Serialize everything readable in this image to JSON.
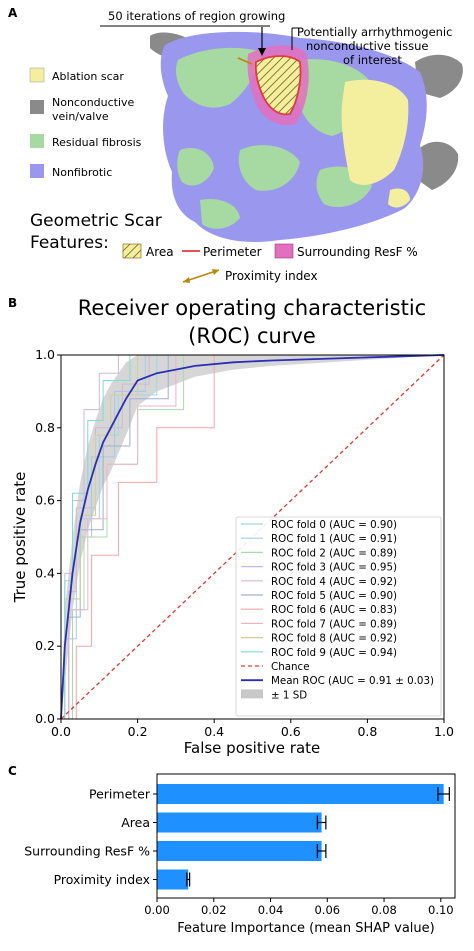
{
  "panel_a": {
    "letter": "A",
    "callout_region": "50 iterations of region growing",
    "callout_tissue": [
      "Potentially arrhythmogenic",
      "nonconductive tissue",
      "of interest"
    ],
    "legend": [
      {
        "label": "Ablation scar",
        "color": "#f3ef9e"
      },
      {
        "label": "Nonconductive",
        "label2": "vein/valve",
        "color": "#8a8a8a"
      },
      {
        "label": "Residual fibrosis",
        "color": "#a7d9a2"
      },
      {
        "label": "Nonfibrotic",
        "color": "#9a97ef"
      }
    ],
    "features_title": [
      "Geometric Scar",
      "Features:"
    ],
    "features": {
      "area": "Area",
      "perimeter": "Perimeter",
      "surrounding": "Surrounding ResF %",
      "proximity": "Proximity index"
    },
    "colors": {
      "perimeter": "#e03a3a",
      "surrounding": "#e36fc0",
      "proximity": "#b8860b"
    }
  },
  "panel_b": {
    "letter": "B",
    "title": [
      "Receiver operating characteristic",
      "(ROC) curve"
    ],
    "xlabel": "False positive rate",
    "ylabel": "True positive rate",
    "xticks": [
      "0.0",
      "0.2",
      "0.4",
      "0.6",
      "0.8",
      "1.0"
    ],
    "yticks": [
      "0.0",
      "0.2",
      "0.4",
      "0.6",
      "0.8",
      "1.0"
    ],
    "legend_folds": [
      "ROC fold 0 (AUC = 0.90)",
      "ROC fold 1 (AUC = 0.91)",
      "ROC fold 2 (AUC = 0.89)",
      "ROC fold 3 (AUC = 0.95)",
      "ROC fold 4 (AUC = 0.92)",
      "ROC fold 5 (AUC = 0.90)",
      "ROC fold 6 (AUC = 0.83)",
      "ROC fold 7 (AUC = 0.89)",
      "ROC fold 8 (AUC = 0.92)",
      "ROC fold 9 (AUC = 0.94)"
    ],
    "legend_chance": "Chance",
    "legend_mean": "Mean ROC (AUC = 0.91 ± 0.03)",
    "legend_sd": "± 1 SD",
    "fold_colors": [
      "#9fd8df",
      "#a6c8e8",
      "#a9dba9",
      "#c8b8e0",
      "#d2b8cf",
      "#9fb0cf",
      "#f2a6a6",
      "#e9b6c9",
      "#cfcf9a",
      "#7fdcd0"
    ],
    "chance_color": "#e03a2a",
    "mean_color": "#2b2fb5",
    "sd_color": "#c8c8c8"
  },
  "chart_data": [
    {
      "type": "line",
      "title": "Receiver operating characteristic (ROC) curve",
      "xlabel": "False positive rate",
      "ylabel": "True positive rate",
      "xlim": [
        0,
        1
      ],
      "ylim": [
        0,
        1
      ],
      "series": [
        {
          "name": "Mean ROC (AUC = 0.91 ± 0.03)",
          "x": [
            0.0,
            0.01,
            0.02,
            0.03,
            0.05,
            0.07,
            0.09,
            0.11,
            0.13,
            0.15,
            0.17,
            0.2,
            0.25,
            0.3,
            0.35,
            0.45,
            0.55,
            0.7,
            0.85,
            1.0
          ],
          "y": [
            0.0,
            0.2,
            0.3,
            0.4,
            0.54,
            0.63,
            0.7,
            0.76,
            0.8,
            0.84,
            0.88,
            0.93,
            0.95,
            0.96,
            0.97,
            0.98,
            0.985,
            0.99,
            0.995,
            1.0
          ]
        },
        {
          "name": "Chance",
          "x": [
            0,
            1
          ],
          "y": [
            0,
            1
          ]
        }
      ],
      "sd_band": {
        "x": [
          0.0,
          0.01,
          0.02,
          0.03,
          0.05,
          0.07,
          0.09,
          0.11,
          0.13,
          0.15,
          0.17,
          0.2,
          0.25,
          0.3,
          0.35,
          0.45,
          0.55,
          0.7,
          0.85,
          1.0
        ],
        "upper": [
          0.0,
          0.3,
          0.4,
          0.5,
          0.65,
          0.75,
          0.82,
          0.88,
          0.92,
          0.95,
          0.98,
          1.0,
          1.0,
          1.0,
          1.0,
          1.0,
          1.0,
          1.0,
          1.0,
          1.0
        ],
        "lower": [
          0.0,
          0.1,
          0.2,
          0.3,
          0.43,
          0.52,
          0.58,
          0.64,
          0.68,
          0.73,
          0.78,
          0.86,
          0.9,
          0.92,
          0.94,
          0.96,
          0.97,
          0.98,
          0.99,
          1.0
        ]
      },
      "folds": [
        {
          "x": [
            0,
            0.02,
            0.02,
            0.05,
            0.05,
            0.1,
            0.1,
            0.15,
            0.15,
            0.25,
            0.25,
            1
          ],
          "y": [
            0,
            0,
            0.33,
            0.33,
            0.55,
            0.55,
            0.78,
            0.78,
            0.89,
            0.89,
            1,
            1
          ]
        },
        {
          "x": [
            0,
            0.01,
            0.01,
            0.04,
            0.04,
            0.08,
            0.08,
            0.14,
            0.14,
            0.22,
            0.22,
            1
          ],
          "y": [
            0,
            0,
            0.22,
            0.22,
            0.5,
            0.5,
            0.72,
            0.72,
            0.9,
            0.9,
            1,
            1
          ]
        },
        {
          "x": [
            0,
            0.03,
            0.03,
            0.06,
            0.06,
            0.12,
            0.12,
            0.2,
            0.2,
            0.32,
            0.32,
            1
          ],
          "y": [
            0,
            0,
            0.3,
            0.3,
            0.5,
            0.5,
            0.7,
            0.7,
            0.85,
            0.85,
            1,
            1
          ]
        },
        {
          "x": [
            0,
            0.01,
            0.01,
            0.03,
            0.03,
            0.06,
            0.06,
            0.1,
            0.1,
            0.15,
            0.15,
            1
          ],
          "y": [
            0,
            0,
            0.4,
            0.4,
            0.6,
            0.6,
            0.85,
            0.85,
            0.95,
            0.95,
            1,
            1
          ]
        },
        {
          "x": [
            0,
            0.02,
            0.02,
            0.04,
            0.04,
            0.09,
            0.09,
            0.16,
            0.16,
            0.23,
            0.23,
            1
          ],
          "y": [
            0,
            0,
            0.35,
            0.35,
            0.58,
            0.58,
            0.8,
            0.8,
            0.92,
            0.92,
            1,
            1
          ]
        },
        {
          "x": [
            0,
            0.02,
            0.02,
            0.05,
            0.05,
            0.11,
            0.11,
            0.18,
            0.18,
            0.28,
            0.28,
            1
          ],
          "y": [
            0,
            0,
            0.28,
            0.28,
            0.52,
            0.52,
            0.75,
            0.75,
            0.88,
            0.88,
            1,
            1
          ]
        },
        {
          "x": [
            0,
            0.04,
            0.04,
            0.08,
            0.08,
            0.15,
            0.15,
            0.25,
            0.25,
            0.4,
            0.4,
            1
          ],
          "y": [
            0,
            0,
            0.2,
            0.2,
            0.45,
            0.45,
            0.65,
            0.65,
            0.8,
            0.8,
            1,
            1
          ]
        },
        {
          "x": [
            0,
            0.02,
            0.02,
            0.07,
            0.07,
            0.12,
            0.12,
            0.2,
            0.2,
            0.3,
            0.3,
            1
          ],
          "y": [
            0,
            0,
            0.3,
            0.3,
            0.55,
            0.55,
            0.7,
            0.7,
            0.86,
            0.86,
            1,
            1
          ]
        },
        {
          "x": [
            0,
            0.01,
            0.01,
            0.05,
            0.05,
            0.09,
            0.09,
            0.13,
            0.13,
            0.2,
            0.2,
            1
          ],
          "y": [
            0,
            0,
            0.33,
            0.33,
            0.56,
            0.56,
            0.78,
            0.78,
            0.89,
            0.89,
            1,
            1
          ]
        },
        {
          "x": [
            0,
            0.01,
            0.01,
            0.03,
            0.03,
            0.07,
            0.07,
            0.11,
            0.11,
            0.18,
            0.18,
            1
          ],
          "y": [
            0,
            0,
            0.38,
            0.38,
            0.62,
            0.62,
            0.82,
            0.82,
            0.93,
            0.93,
            1,
            1
          ]
        }
      ]
    },
    {
      "type": "bar",
      "orientation": "horizontal",
      "xlabel": "Feature Importance (mean SHAP value)",
      "ylabel": "",
      "categories": [
        "Perimeter",
        "Area",
        "Surrounding ResF %",
        "Proximity index"
      ],
      "values": [
        0.101,
        0.058,
        0.058,
        0.011
      ],
      "errors": [
        0.002,
        0.0015,
        0.0015,
        0.0005
      ],
      "xlim": [
        0,
        0.105
      ],
      "xticks": [
        "0.00",
        "0.02",
        "0.04",
        "0.06",
        "0.08",
        "0.10"
      ],
      "bar_color": "#1e90ff"
    }
  ],
  "panel_c": {
    "letter": "C"
  }
}
